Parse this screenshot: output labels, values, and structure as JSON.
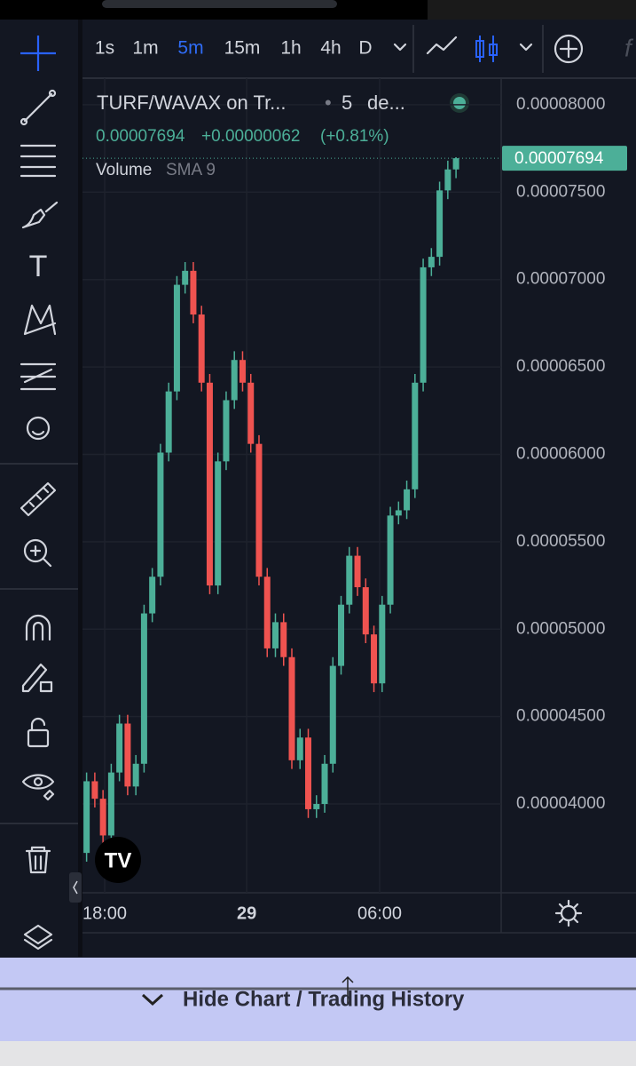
{
  "toolbar": {
    "intervals": [
      "1s",
      "1m",
      "5m",
      "15m",
      "1h",
      "4h",
      "D"
    ],
    "active_interval": 2
  },
  "legend": {
    "symbol": "TURF/WAVAX on Tr...",
    "interval": "5",
    "source": "de...",
    "price": "0.00007694",
    "change": "+0.00000062",
    "change_pct": "(+0.81%)",
    "indicator": "Volume",
    "indicator_args": "SMA 9"
  },
  "chart_data": {
    "type": "candlestick",
    "up_color": "#4caf98",
    "down_color": "#ef5350",
    "grid": true,
    "open": [
      3.72e-05,
      4.13e-05,
      4.03e-05,
      3.82e-05,
      4.18e-05,
      4.46e-05,
      4.1e-05,
      4.23e-05,
      5.09e-05,
      5.3e-05,
      6.01e-05,
      6.36e-05,
      6.97e-05,
      7.05e-05,
      6.8e-05,
      6.41e-05,
      5.25e-05,
      5.96e-05,
      6.31e-05,
      6.54e-05,
      6.41e-05,
      6.06e-05,
      5.3e-05,
      4.89e-05,
      5.04e-05,
      4.84e-05,
      4.25e-05,
      4.38e-05,
      3.97e-05,
      4e-05,
      4.23e-05,
      4.79e-05,
      5.14e-05,
      5.42e-05,
      5.24e-05,
      4.97e-05,
      4.69e-05,
      5.14e-05,
      5.65e-05,
      5.68e-05,
      5.8e-05,
      6.41e-05,
      7.07e-05,
      7.13e-05,
      7.51e-05,
      7.63e-05
    ],
    "high": [
      4.18e-05,
      4.18e-05,
      4.08e-05,
      4.23e-05,
      4.51e-05,
      4.51e-05,
      4.28e-05,
      5.14e-05,
      5.35e-05,
      6.06e-05,
      6.41e-05,
      7.02e-05,
      7.1e-05,
      7.1e-05,
      6.85e-05,
      6.46e-05,
      6.01e-05,
      6.36e-05,
      6.59e-05,
      6.59e-05,
      6.46e-05,
      6.11e-05,
      5.35e-05,
      5.09e-05,
      5.09e-05,
      4.89e-05,
      4.43e-05,
      4.43e-05,
      4.05e-05,
      4.28e-05,
      4.84e-05,
      5.19e-05,
      5.47e-05,
      5.47e-05,
      5.29e-05,
      5.02e-05,
      5.19e-05,
      5.7e-05,
      5.73e-05,
      5.85e-05,
      6.46e-05,
      7.12e-05,
      7.18e-05,
      7.56e-05,
      7.68e-05,
      7.7e-05
    ],
    "low": [
      3.67e-05,
      3.98e-05,
      3.77e-05,
      3.77e-05,
      4.13e-05,
      4.05e-05,
      4.05e-05,
      4.18e-05,
      5.04e-05,
      5.25e-05,
      5.96e-05,
      6.31e-05,
      6.92e-05,
      6.75e-05,
      6.36e-05,
      5.2e-05,
      5.2e-05,
      5.91e-05,
      6.26e-05,
      6.36e-05,
      6.01e-05,
      5.25e-05,
      4.84e-05,
      4.84e-05,
      4.79e-05,
      4.2e-05,
      4.2e-05,
      3.92e-05,
      3.92e-05,
      3.95e-05,
      4.18e-05,
      4.74e-05,
      5.09e-05,
      5.19e-05,
      4.92e-05,
      4.64e-05,
      4.64e-05,
      5.09e-05,
      5.6e-05,
      5.63e-05,
      5.75e-05,
      6.36e-05,
      7.02e-05,
      7.08e-05,
      7.46e-05,
      7.58e-05
    ],
    "close": [
      4.13e-05,
      4.03e-05,
      3.82e-05,
      4.18e-05,
      4.46e-05,
      4.1e-05,
      4.23e-05,
      5.09e-05,
      5.3e-05,
      6.01e-05,
      6.36e-05,
      6.97e-05,
      7.05e-05,
      6.8e-05,
      6.41e-05,
      5.25e-05,
      5.96e-05,
      6.31e-05,
      6.54e-05,
      6.41e-05,
      6.06e-05,
      5.3e-05,
      4.89e-05,
      5.04e-05,
      4.84e-05,
      4.25e-05,
      4.38e-05,
      3.97e-05,
      4e-05,
      4.23e-05,
      4.79e-05,
      5.14e-05,
      5.42e-05,
      5.24e-05,
      4.97e-05,
      4.69e-05,
      5.14e-05,
      5.65e-05,
      5.68e-05,
      5.8e-05,
      6.41e-05,
      7.07e-05,
      7.13e-05,
      7.51e-05,
      7.63e-05,
      7.694e-05
    ],
    "ylim": [
      3.492e-05,
      8.152e-05
    ],
    "yticks": [
      {
        "value": 4e-05,
        "label": "0.00004000"
      },
      {
        "value": 4.5e-05,
        "label": "0.00004500"
      },
      {
        "value": 5e-05,
        "label": "0.00005000"
      },
      {
        "value": 5.5e-05,
        "label": "0.00005500"
      },
      {
        "value": 6e-05,
        "label": "0.00006000"
      },
      {
        "value": 6.5e-05,
        "label": "0.00006500"
      },
      {
        "value": 7e-05,
        "label": "0.00007000"
      },
      {
        "value": 7.5e-05,
        "label": "0.00007500"
      },
      {
        "value": 8e-05,
        "label": "0.00008000"
      }
    ],
    "xlim": [
      -0.5,
      50.5
    ],
    "xticks": [
      {
        "value": 2.2,
        "label": "18:00"
      },
      {
        "value": 19.5,
        "label": "29"
      },
      {
        "value": 35.7,
        "label": "06:00"
      }
    ],
    "last_price": {
      "value": 7.694e-05,
      "label": "0.00007694"
    }
  },
  "bottom_bar": {
    "label": "Hide Chart / Trading History"
  }
}
